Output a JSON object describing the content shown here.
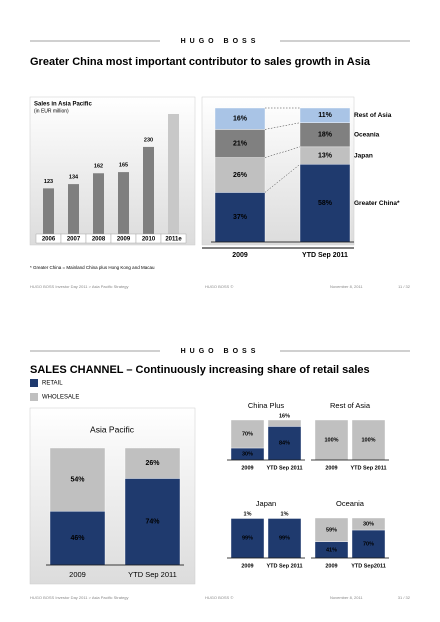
{
  "slides": [
    {
      "brand": "HUGO BOSS",
      "title": "Greater China most important contributor to sales growth in Asia",
      "footnote": "* Greater China = Mainland China plus Hong Kong and Macau",
      "footer": [
        "HUGO BOSS Investor Day 2011 > Asia Pacific Strategy",
        "HUGO BOSS ©",
        "November 8, 2011",
        "11 / 32"
      ]
    },
    {
      "brand": "HUGO BOSS",
      "title": "SALES CHANNEL – Continuously increasing share of retail sales",
      "footer": [
        "HUGO BOSS Investor Day 2011 > Asia Pacific Strategy",
        "HUGO BOSS ©",
        "November 8, 2011",
        "31 / 32"
      ]
    }
  ],
  "chart_data": [
    {
      "type": "bar",
      "title": "Sales in Asia Pacific",
      "subtitle": "(in EUR million)",
      "categories": [
        "2006",
        "2007",
        "2008",
        "2009",
        "2010",
        "2011e"
      ],
      "values": [
        123,
        134,
        162,
        165,
        230,
        315
      ],
      "value_labels": [
        "123",
        "134",
        "162",
        "165",
        "230",
        null
      ],
      "colors": [
        "#7f7f7f",
        "#7f7f7f",
        "#7f7f7f",
        "#7f7f7f",
        "#7f7f7f",
        "#c8c8c8"
      ]
    },
    {
      "type": "stacked-bar",
      "categories": [
        "2009",
        "YTD Sep 2011"
      ],
      "series": [
        {
          "name": "Greater China*",
          "color": "#1f3a6e",
          "values": [
            37,
            58
          ],
          "value_labels": [
            "37%",
            "58%"
          ]
        },
        {
          "name": "Japan",
          "color": "#c0c0c0",
          "values": [
            26,
            13
          ],
          "value_labels": [
            "26%",
            "13%"
          ]
        },
        {
          "name": "Oceania",
          "color": "#808080",
          "values": [
            21,
            18
          ],
          "value_labels": [
            "21%",
            "18%"
          ]
        },
        {
          "name": "Rest of Asia",
          "color": "#a9c4e6",
          "values": [
            16,
            11
          ],
          "value_labels": [
            "16%",
            "11%"
          ]
        }
      ]
    },
    {
      "type": "stacked-bar",
      "title": "Asia Pacific",
      "categories": [
        "2009",
        "YTD Sep 2011"
      ],
      "series": [
        {
          "name": "RETAIL",
          "color": "#1f3a6e",
          "values": [
            46,
            74
          ],
          "value_labels": [
            "46%",
            "74%"
          ]
        },
        {
          "name": "WHOLESALE",
          "color": "#c0c0c0",
          "values": [
            54,
            26
          ],
          "value_labels": [
            "54%",
            "26%"
          ]
        }
      ]
    },
    {
      "type": "stacked-bar",
      "title": "China Plus",
      "categories": [
        "2009",
        "YTD Sep 2011"
      ],
      "series": [
        {
          "name": "RETAIL",
          "color": "#1f3a6e",
          "values": [
            30,
            84
          ],
          "value_labels": [
            "30%",
            "84%"
          ]
        },
        {
          "name": "WHOLESALE",
          "color": "#c0c0c0",
          "values": [
            70,
            16
          ],
          "value_labels": [
            "70%",
            "16%"
          ]
        }
      ]
    },
    {
      "type": "stacked-bar",
      "title": "Rest of Asia",
      "categories": [
        "2009",
        "YTD Sep 2011"
      ],
      "series": [
        {
          "name": "RETAIL",
          "color": "#1f3a6e",
          "values": [
            0,
            0
          ],
          "value_labels": [
            null,
            null
          ]
        },
        {
          "name": "WHOLESALE",
          "color": "#c0c0c0",
          "values": [
            100,
            100
          ],
          "value_labels": [
            "100%",
            "100%"
          ]
        }
      ]
    },
    {
      "type": "stacked-bar",
      "title": "Japan",
      "categories": [
        "2009",
        "YTD Sep 2011"
      ],
      "series": [
        {
          "name": "RETAIL",
          "color": "#1f3a6e",
          "values": [
            99,
            99
          ],
          "value_labels": [
            "99%",
            "99%"
          ]
        },
        {
          "name": "WHOLESALE",
          "color": "#c0c0c0",
          "values": [
            1,
            1
          ],
          "value_labels": [
            "1%",
            "1%"
          ]
        }
      ]
    },
    {
      "type": "stacked-bar",
      "title": "Oceania",
      "categories": [
        "2009",
        "YTD Sep2011"
      ],
      "series": [
        {
          "name": "RETAIL",
          "color": "#1f3a6e",
          "values": [
            41,
            70
          ],
          "value_labels": [
            "41%",
            "70%"
          ]
        },
        {
          "name": "WHOLESALE",
          "color": "#c0c0c0",
          "values": [
            59,
            30
          ],
          "value_labels": [
            "59%",
            "30%"
          ]
        }
      ]
    }
  ]
}
